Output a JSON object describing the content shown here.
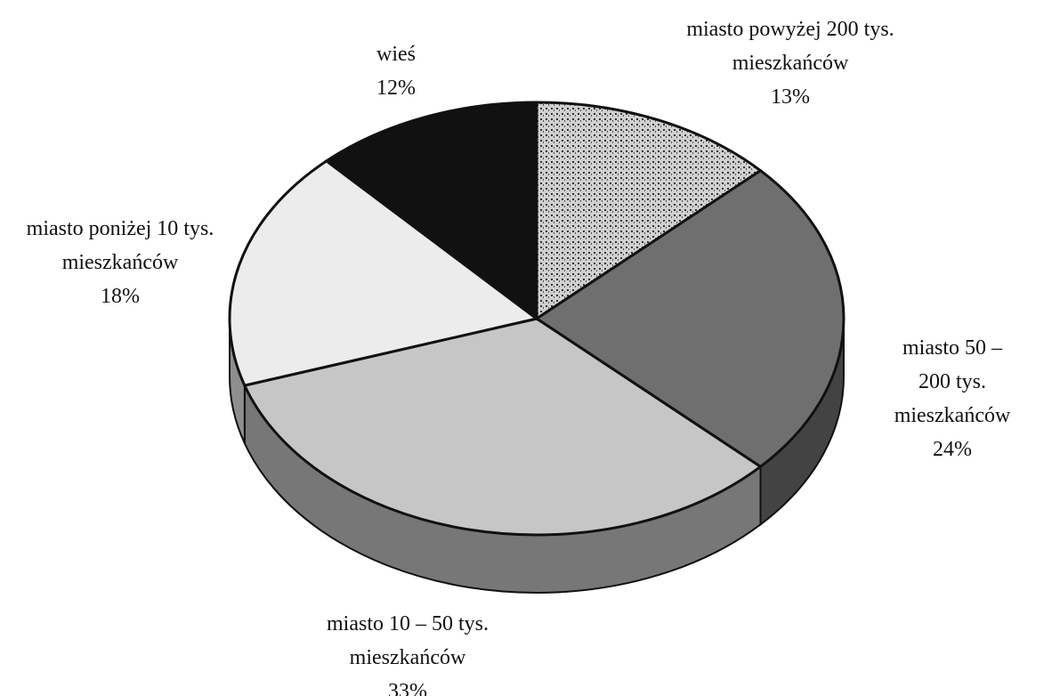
{
  "chart_data": {
    "type": "pie3d",
    "categories": [
      "miasto powyżej 200 tys.\nmieszkańców",
      "miasto 50 – 200 tys.\nmieszkańców",
      "miasto 10 – 50 tys.\nmieszkańców",
      "miasto poniżej 10 tys.\nmieszkańców",
      "wieś"
    ],
    "values": [
      13,
      24,
      33,
      18,
      12
    ],
    "value_labels": [
      "13%",
      "24%",
      "33%",
      "18%",
      "12%"
    ],
    "colors": [
      "#8c8c8c",
      "#6f6f6f",
      "#c6c6c6",
      "#ececec",
      "#111111"
    ]
  }
}
